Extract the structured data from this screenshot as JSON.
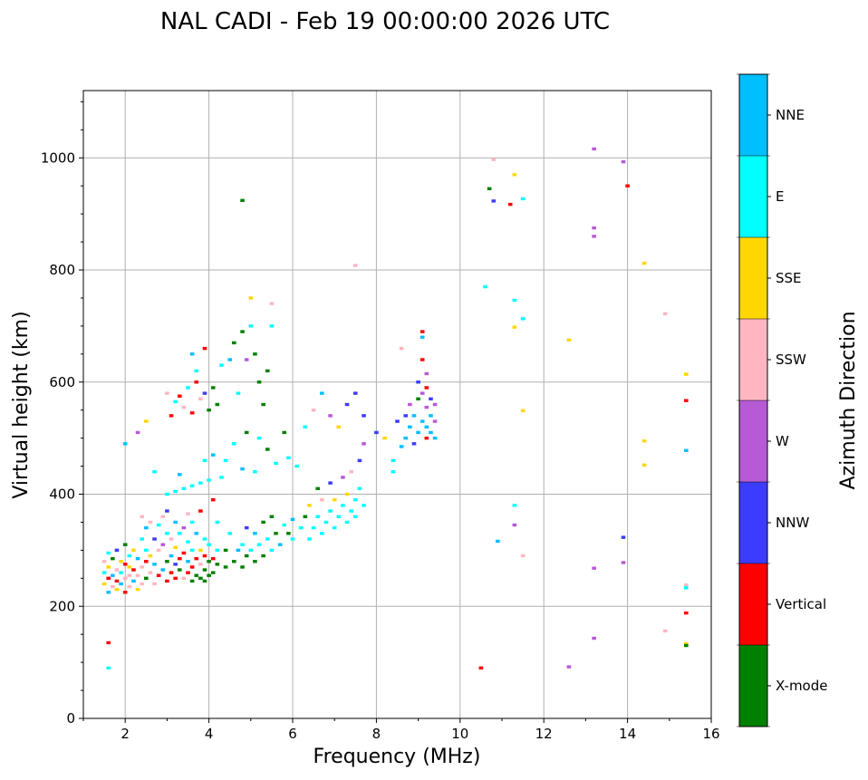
{
  "chart_data": {
    "type": "scatter",
    "title": "NAL CADI - Feb 19 00:00:00 2026 UTC",
    "xlabel": "Frequency (MHz)",
    "ylabel": "Virtual height (km)",
    "xlim": [
      1,
      16
    ],
    "ylim": [
      0,
      1120
    ],
    "xticks": [
      2,
      4,
      6,
      8,
      10,
      12,
      14,
      16
    ],
    "yticks": [
      0,
      200,
      400,
      600,
      800,
      1000
    ],
    "grid": true,
    "colorbar": {
      "label": "Azimuth Direction",
      "categories": [
        "X-mode",
        "Vertical",
        "NNW",
        "W",
        "SSW",
        "SSE",
        "E",
        "NNE"
      ],
      "colors": [
        "#008000",
        "#ff0000",
        "#3c3cff",
        "#b65ad6",
        "#ffb6c1",
        "#ffd700",
        "#00ffff",
        "#00bfff"
      ]
    },
    "point_format": [
      "frequency_MHz",
      "height_km",
      "direction_index"
    ],
    "points": [
      [
        1.5,
        240,
        5
      ],
      [
        1.5,
        260,
        6
      ],
      [
        1.5,
        280,
        4
      ],
      [
        1.6,
        225,
        7
      ],
      [
        1.6,
        250,
        1
      ],
      [
        1.6,
        270,
        5
      ],
      [
        1.6,
        295,
        6
      ],
      [
        1.7,
        235,
        4
      ],
      [
        1.7,
        255,
        7
      ],
      [
        1.7,
        285,
        0
      ],
      [
        1.8,
        230,
        5
      ],
      [
        1.8,
        245,
        1
      ],
      [
        1.8,
        265,
        4
      ],
      [
        1.8,
        300,
        2
      ],
      [
        1.9,
        240,
        7
      ],
      [
        1.9,
        260,
        6
      ],
      [
        1.9,
        280,
        5
      ],
      [
        2.0,
        225,
        1
      ],
      [
        2.0,
        250,
        4
      ],
      [
        2.0,
        275,
        1
      ],
      [
        2.0,
        310,
        0
      ],
      [
        2.1,
        235,
        4
      ],
      [
        2.1,
        255,
        4
      ],
      [
        2.1,
        270,
        5
      ],
      [
        2.1,
        290,
        6
      ],
      [
        2.2,
        245,
        7
      ],
      [
        2.2,
        265,
        1
      ],
      [
        2.2,
        300,
        5
      ],
      [
        2.3,
        230,
        5
      ],
      [
        2.3,
        255,
        4
      ],
      [
        2.3,
        285,
        7
      ],
      [
        2.4,
        240,
        4
      ],
      [
        2.4,
        270,
        4
      ],
      [
        2.4,
        320,
        6
      ],
      [
        2.4,
        360,
        4
      ],
      [
        2.5,
        250,
        0
      ],
      [
        2.5,
        280,
        1
      ],
      [
        2.5,
        300,
        6
      ],
      [
        2.5,
        340,
        7
      ],
      [
        2.6,
        260,
        4
      ],
      [
        2.6,
        290,
        5
      ],
      [
        2.6,
        350,
        4
      ],
      [
        2.7,
        240,
        4
      ],
      [
        2.7,
        275,
        7
      ],
      [
        2.7,
        320,
        2
      ],
      [
        2.8,
        255,
        1
      ],
      [
        2.8,
        300,
        4
      ],
      [
        2.8,
        345,
        6
      ],
      [
        2.9,
        265,
        7
      ],
      [
        2.9,
        310,
        3
      ],
      [
        2.9,
        360,
        4
      ],
      [
        3.0,
        245,
        1
      ],
      [
        3.0,
        280,
        0
      ],
      [
        3.0,
        330,
        6
      ],
      [
        3.0,
        370,
        2
      ],
      [
        3.1,
        260,
        1
      ],
      [
        3.1,
        290,
        7
      ],
      [
        3.1,
        320,
        4
      ],
      [
        3.2,
        250,
        1
      ],
      [
        3.2,
        275,
        2
      ],
      [
        3.2,
        305,
        5
      ],
      [
        3.2,
        350,
        7
      ],
      [
        3.3,
        265,
        0
      ],
      [
        3.3,
        285,
        1
      ],
      [
        3.3,
        330,
        6
      ],
      [
        3.4,
        250,
        4
      ],
      [
        3.4,
        295,
        1
      ],
      [
        3.4,
        340,
        3
      ],
      [
        3.5,
        260,
        1
      ],
      [
        3.5,
        280,
        7
      ],
      [
        3.5,
        315,
        6
      ],
      [
        3.5,
        365,
        4
      ],
      [
        3.6,
        245,
        0
      ],
      [
        3.6,
        270,
        1
      ],
      [
        3.6,
        300,
        6
      ],
      [
        3.6,
        350,
        6
      ],
      [
        3.7,
        255,
        0
      ],
      [
        3.7,
        285,
        1
      ],
      [
        3.7,
        330,
        7
      ],
      [
        3.8,
        250,
        0
      ],
      [
        3.8,
        275,
        4
      ],
      [
        3.8,
        300,
        5
      ],
      [
        3.8,
        370,
        1
      ],
      [
        3.9,
        245,
        0
      ],
      [
        3.9,
        265,
        0
      ],
      [
        3.9,
        290,
        1
      ],
      [
        3.9,
        320,
        6
      ],
      [
        4.0,
        255,
        0
      ],
      [
        4.0,
        280,
        0
      ],
      [
        4.0,
        310,
        6
      ],
      [
        4.1,
        260,
        0
      ],
      [
        4.1,
        285,
        1
      ],
      [
        4.1,
        390,
        1
      ],
      [
        4.2,
        275,
        0
      ],
      [
        4.2,
        300,
        6
      ],
      [
        4.2,
        350,
        6
      ],
      [
        4.4,
        270,
        0
      ],
      [
        4.4,
        300,
        0
      ],
      [
        4.5,
        330,
        6
      ],
      [
        4.6,
        280,
        0
      ],
      [
        4.7,
        300,
        7
      ],
      [
        4.8,
        270,
        0
      ],
      [
        4.8,
        310,
        6
      ],
      [
        4.9,
        290,
        0
      ],
      [
        4.9,
        340,
        2
      ],
      [
        5.0,
        300,
        6
      ],
      [
        5.1,
        280,
        0
      ],
      [
        5.1,
        330,
        7
      ],
      [
        5.2,
        310,
        6
      ],
      [
        5.3,
        290,
        0
      ],
      [
        5.3,
        350,
        0
      ],
      [
        5.4,
        320,
        6
      ],
      [
        5.5,
        300,
        6
      ],
      [
        5.5,
        360,
        0
      ],
      [
        5.6,
        330,
        0
      ],
      [
        5.7,
        310,
        7
      ],
      [
        5.8,
        345,
        6
      ],
      [
        5.9,
        330,
        0
      ],
      [
        6.0,
        355,
        7
      ],
      [
        6.0,
        320,
        6
      ],
      [
        6.2,
        340,
        6
      ],
      [
        6.3,
        360,
        0
      ],
      [
        6.4,
        320,
        6
      ],
      [
        6.4,
        380,
        5
      ],
      [
        6.5,
        340,
        6
      ],
      [
        6.6,
        360,
        6
      ],
      [
        6.6,
        410,
        0
      ],
      [
        6.7,
        330,
        6
      ],
      [
        6.7,
        390,
        4
      ],
      [
        6.8,
        350,
        6
      ],
      [
        6.9,
        370,
        6
      ],
      [
        6.9,
        420,
        2
      ],
      [
        7.0,
        340,
        6
      ],
      [
        7.0,
        390,
        5
      ],
      [
        7.1,
        360,
        6
      ],
      [
        7.2,
        380,
        6
      ],
      [
        7.2,
        430,
        3
      ],
      [
        7.3,
        350,
        6
      ],
      [
        7.3,
        400,
        5
      ],
      [
        7.4,
        370,
        6
      ],
      [
        7.4,
        440,
        4
      ],
      [
        7.5,
        360,
        6
      ],
      [
        7.5,
        390,
        6
      ],
      [
        7.6,
        410,
        6
      ],
      [
        7.6,
        460,
        2
      ],
      [
        7.7,
        380,
        6
      ],
      [
        7.7,
        490,
        3
      ],
      [
        7.7,
        540,
        2
      ],
      [
        7.5,
        580,
        2
      ],
      [
        3.0,
        400,
        6
      ],
      [
        3.2,
        405,
        6
      ],
      [
        3.4,
        410,
        6
      ],
      [
        3.6,
        415,
        6
      ],
      [
        3.8,
        420,
        6
      ],
      [
        4.0,
        425,
        6
      ],
      [
        3.3,
        435,
        7
      ],
      [
        4.3,
        430,
        6
      ],
      [
        8.0,
        510,
        2
      ],
      [
        8.2,
        500,
        5
      ],
      [
        8.4,
        460,
        6
      ],
      [
        8.4,
        440,
        6
      ],
      [
        8.5,
        530,
        2
      ],
      [
        8.6,
        485,
        7
      ],
      [
        8.7,
        540,
        2
      ],
      [
        8.7,
        500,
        7
      ],
      [
        8.8,
        520,
        7
      ],
      [
        8.8,
        560,
        3
      ],
      [
        8.9,
        490,
        2
      ],
      [
        8.9,
        540,
        7
      ],
      [
        9.0,
        510,
        7
      ],
      [
        9.0,
        570,
        0
      ],
      [
        9.0,
        600,
        2
      ],
      [
        9.1,
        530,
        7
      ],
      [
        9.1,
        580,
        3
      ],
      [
        9.1,
        640,
        1
      ],
      [
        9.1,
        690,
        1
      ],
      [
        9.2,
        500,
        1
      ],
      [
        9.2,
        520,
        7
      ],
      [
        9.2,
        555,
        3
      ],
      [
        9.2,
        590,
        1
      ],
      [
        9.3,
        540,
        7
      ],
      [
        9.3,
        510,
        7
      ],
      [
        9.3,
        570,
        2
      ],
      [
        9.4,
        530,
        3
      ],
      [
        9.4,
        500,
        7
      ],
      [
        9.4,
        560,
        3
      ],
      [
        9.1,
        680,
        7
      ],
      [
        8.6,
        660,
        4
      ],
      [
        9.2,
        615,
        3
      ],
      [
        3.0,
        580,
        4
      ],
      [
        3.1,
        540,
        1
      ],
      [
        3.2,
        565,
        6
      ],
      [
        3.3,
        575,
        1
      ],
      [
        3.4,
        555,
        4
      ],
      [
        3.5,
        590,
        6
      ],
      [
        3.6,
        545,
        1
      ],
      [
        3.7,
        600,
        1
      ],
      [
        3.8,
        570,
        4
      ],
      [
        3.9,
        580,
        2
      ],
      [
        4.0,
        550,
        0
      ],
      [
        4.1,
        590,
        0
      ],
      [
        4.2,
        560,
        0
      ],
      [
        3.9,
        660,
        1
      ],
      [
        3.6,
        650,
        7
      ],
      [
        3.7,
        620,
        6
      ],
      [
        4.3,
        630,
        6
      ],
      [
        4.6,
        670,
        0
      ],
      [
        4.8,
        690,
        0
      ],
      [
        4.9,
        640,
        3
      ],
      [
        5.0,
        750,
        5
      ],
      [
        5.0,
        700,
        6
      ],
      [
        5.1,
        650,
        0
      ],
      [
        5.2,
        600,
        0
      ],
      [
        5.3,
        560,
        0
      ],
      [
        5.5,
        740,
        4
      ],
      [
        5.5,
        700,
        6
      ],
      [
        5.4,
        620,
        0
      ],
      [
        4.5,
        640,
        7
      ],
      [
        4.7,
        580,
        6
      ],
      [
        4.9,
        510,
        0
      ],
      [
        5.2,
        500,
        6
      ],
      [
        5.4,
        480,
        0
      ],
      [
        5.8,
        510,
        0
      ],
      [
        6.1,
        450,
        6
      ],
      [
        6.3,
        520,
        6
      ],
      [
        6.5,
        550,
        4
      ],
      [
        6.7,
        580,
        7
      ],
      [
        6.9,
        540,
        3
      ],
      [
        7.1,
        520,
        5
      ],
      [
        7.3,
        560,
        2
      ],
      [
        2.0,
        490,
        7
      ],
      [
        2.3,
        510,
        3
      ],
      [
        2.5,
        530,
        5
      ],
      [
        2.7,
        440,
        6
      ],
      [
        3.9,
        460,
        6
      ],
      [
        4.1,
        470,
        7
      ],
      [
        4.4,
        460,
        6
      ],
      [
        4.6,
        490,
        6
      ],
      [
        4.8,
        445,
        7
      ],
      [
        5.1,
        440,
        6
      ],
      [
        5.6,
        455,
        6
      ],
      [
        5.9,
        465,
        6
      ],
      [
        10.8,
        997,
        4
      ],
      [
        10.7,
        945,
        0
      ],
      [
        10.8,
        923,
        2
      ],
      [
        11.3,
        970,
        5
      ],
      [
        11.2,
        917,
        1
      ],
      [
        11.5,
        927,
        6
      ],
      [
        13.2,
        1016,
        3
      ],
      [
        13.9,
        993,
        3
      ],
      [
        14.0,
        950,
        1
      ],
      [
        13.2,
        875,
        3
      ],
      [
        13.2,
        860,
        3
      ],
      [
        14.4,
        812,
        5
      ],
      [
        10.6,
        770,
        6
      ],
      [
        11.3,
        746,
        6
      ],
      [
        11.5,
        713,
        6
      ],
      [
        11.3,
        698,
        5
      ],
      [
        12.6,
        675,
        5
      ],
      [
        14.9,
        722,
        4
      ],
      [
        15.4,
        614,
        5
      ],
      [
        15.4,
        567,
        1
      ],
      [
        11.5,
        549,
        5
      ],
      [
        14.4,
        495,
        5
      ],
      [
        15.4,
        478,
        7
      ],
      [
        14.4,
        452,
        5
      ],
      [
        11.3,
        380,
        6
      ],
      [
        11.3,
        345,
        3
      ],
      [
        10.9,
        316,
        7
      ],
      [
        11.5,
        290,
        4
      ],
      [
        13.9,
        323,
        2
      ],
      [
        13.2,
        268,
        3
      ],
      [
        13.9,
        278,
        3
      ],
      [
        15.4,
        238,
        4
      ],
      [
        15.4,
        233,
        6
      ],
      [
        15.4,
        188,
        1
      ],
      [
        14.9,
        156,
        4
      ],
      [
        13.2,
        143,
        3
      ],
      [
        15.4,
        133,
        5
      ],
      [
        15.4,
        130,
        0
      ],
      [
        12.6,
        92,
        3
      ],
      [
        10.5,
        90,
        1
      ],
      [
        1.6,
        90,
        6
      ],
      [
        1.6,
        135,
        1
      ],
      [
        4.8,
        924,
        0
      ],
      [
        7.5,
        808,
        4
      ]
    ]
  }
}
